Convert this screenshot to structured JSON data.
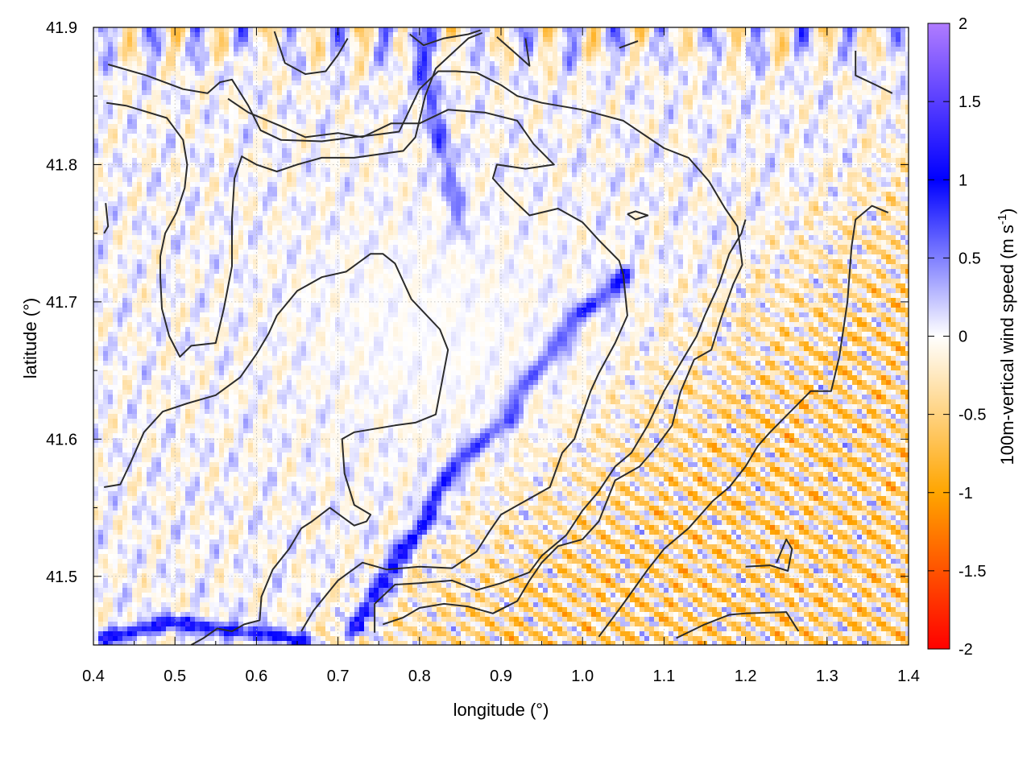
{
  "chart_data": {
    "type": "heatmap",
    "xlabel": "longitude (°)",
    "ylabel": "latitude (°)",
    "colorbar_label_main": "100m-vertical wind speed (m s",
    "colorbar_label_sup": "-1",
    "colorbar_label_end": ")",
    "xlim": [
      0.4,
      1.4
    ],
    "ylim": [
      41.45,
      41.9
    ],
    "x_ticks": [
      "0.4",
      "0.5",
      "0.6",
      "0.7",
      "0.8",
      "0.9",
      "1.0",
      "1.1",
      "1.2",
      "1.3",
      "1.4"
    ],
    "y_ticks": [
      "41.5",
      "41.6",
      "41.7",
      "41.8",
      "41.9"
    ],
    "colorbar_ticks": [
      "2",
      "1.5",
      "1",
      "0.5",
      "0",
      "-0.5",
      "-1",
      "-1.5",
      "-2"
    ],
    "color_range": [
      -2,
      2
    ],
    "grid": true,
    "colors": {
      "positive_strong": "#0000ff",
      "positive_max": "#b07cff",
      "neutral": "#ffffff",
      "negative_mid": "#ffa500",
      "negative_strong": "#ff0000",
      "contour": "#2b2b2b"
    },
    "contours": [
      [
        [
          0.418,
          41.873
        ],
        [
          0.465,
          41.865
        ],
        [
          0.51,
          41.855
        ],
        [
          0.54,
          41.852
        ],
        [
          0.555,
          41.86
        ],
        [
          0.57,
          41.862
        ],
        [
          0.59,
          41.843
        ],
        [
          0.605,
          41.825
        ],
        [
          0.63,
          41.818
        ],
        [
          0.68,
          41.817
        ],
        [
          0.72,
          41.82
        ],
        [
          0.75,
          41.822
        ],
        [
          0.775,
          41.824
        ],
        [
          0.8,
          41.855
        ],
        [
          0.823,
          41.868
        ],
        [
          0.845,
          41.868
        ],
        [
          0.87,
          41.867
        ],
        [
          0.9,
          41.858
        ],
        [
          0.92,
          41.85
        ],
        [
          0.95,
          41.845
        ],
        [
          1.0,
          41.84
        ],
        [
          1.05,
          41.832
        ],
        [
          1.1,
          41.812
        ],
        [
          1.13,
          41.805
        ],
        [
          1.155,
          41.788
        ],
        [
          1.175,
          41.768
        ],
        [
          1.19,
          41.755
        ],
        [
          1.196,
          41.727
        ],
        [
          1.185,
          41.713
        ],
        [
          1.17,
          41.688
        ],
        [
          1.158,
          41.665
        ],
        [
          1.137,
          41.658
        ],
        [
          1.12,
          41.634
        ],
        [
          1.11,
          41.61
        ],
        [
          1.09,
          41.594
        ],
        [
          1.07,
          41.58
        ],
        [
          1.04,
          41.57
        ],
        [
          1.02,
          41.54
        ],
        [
          1.0,
          41.527
        ],
        [
          0.97,
          41.522
        ],
        [
          0.95,
          41.51
        ],
        [
          0.935,
          41.497
        ],
        [
          0.92,
          41.482
        ],
        [
          0.89,
          41.473
        ],
        [
          0.86,
          41.478
        ],
        [
          0.83,
          41.48
        ],
        [
          0.8,
          41.477
        ],
        [
          0.78,
          41.47
        ],
        [
          0.755,
          41.465
        ]
      ],
      [
        [
          0.416,
          41.845
        ],
        [
          0.44,
          41.843
        ],
        [
          0.49,
          41.834
        ],
        [
          0.51,
          41.818
        ],
        [
          0.515,
          41.8
        ],
        [
          0.512,
          41.783
        ],
        [
          0.502,
          41.765
        ],
        [
          0.488,
          41.75
        ],
        [
          0.482,
          41.733
        ],
        [
          0.482,
          41.718
        ],
        [
          0.484,
          41.695
        ],
        [
          0.493,
          41.675
        ],
        [
          0.506,
          41.66
        ],
        [
          0.52,
          41.668
        ],
        [
          0.55,
          41.67
        ],
        [
          0.56,
          41.695
        ],
        [
          0.57,
          41.726
        ],
        [
          0.57,
          41.76
        ],
        [
          0.573,
          41.79
        ],
        [
          0.582,
          41.806
        ],
        [
          0.6,
          41.8
        ],
        [
          0.625,
          41.795
        ],
        [
          0.65,
          41.8
        ],
        [
          0.68,
          41.805
        ],
        [
          0.72,
          41.805
        ],
        [
          0.78,
          41.81
        ],
        [
          0.795,
          41.82
        ],
        [
          0.807,
          41.85
        ],
        [
          0.82,
          41.87
        ],
        [
          0.838,
          41.88
        ],
        [
          0.86,
          41.892
        ],
        [
          0.877,
          41.896
        ]
      ],
      [
        [
          0.413,
          41.565
        ],
        [
          0.433,
          41.567
        ],
        [
          0.445,
          41.582
        ],
        [
          0.462,
          41.605
        ],
        [
          0.485,
          41.62
        ],
        [
          0.515,
          41.626
        ],
        [
          0.55,
          41.632
        ],
        [
          0.58,
          41.645
        ],
        [
          0.6,
          41.662
        ],
        [
          0.615,
          41.677
        ],
        [
          0.625,
          41.69
        ],
        [
          0.65,
          41.708
        ],
        [
          0.68,
          41.718
        ],
        [
          0.71,
          41.722
        ],
        [
          0.74,
          41.735
        ],
        [
          0.755,
          41.735
        ],
        [
          0.77,
          41.728
        ],
        [
          0.79,
          41.702
        ],
        [
          0.825,
          41.68
        ],
        [
          0.835,
          41.665
        ],
        [
          0.828,
          41.643
        ],
        [
          0.82,
          41.618
        ],
        [
          0.795,
          41.612
        ],
        [
          0.77,
          41.61
        ],
        [
          0.72,
          41.605
        ],
        [
          0.705,
          41.6
        ],
        [
          0.708,
          41.575
        ],
        [
          0.72,
          41.552
        ],
        [
          0.74,
          41.545
        ],
        [
          0.735,
          41.54
        ],
        [
          0.72,
          41.537
        ],
        [
          0.69,
          41.55
        ],
        [
          0.668,
          41.54
        ],
        [
          0.655,
          41.535
        ],
        [
          0.64,
          41.52
        ],
        [
          0.62,
          41.505
        ],
        [
          0.606,
          41.485
        ],
        [
          0.604,
          41.468
        ],
        [
          0.585,
          41.465
        ],
        [
          0.57,
          41.46
        ],
        [
          0.552,
          41.462
        ],
        [
          0.535,
          41.455
        ],
        [
          0.52,
          41.45
        ]
      ],
      [
        [
          0.655,
          41.46
        ],
        [
          0.67,
          41.475
        ],
        [
          0.7,
          41.497
        ],
        [
          0.73,
          41.51
        ],
        [
          0.76,
          41.505
        ],
        [
          0.8,
          41.507
        ],
        [
          0.84,
          41.506
        ],
        [
          0.87,
          41.518
        ],
        [
          0.885,
          41.532
        ],
        [
          0.9,
          41.545
        ],
        [
          0.93,
          41.555
        ],
        [
          0.96,
          41.565
        ],
        [
          0.975,
          41.59
        ],
        [
          0.99,
          41.6
        ],
        [
          1.0,
          41.618
        ],
        [
          1.01,
          41.635
        ],
        [
          1.02,
          41.648
        ],
        [
          1.04,
          41.67
        ],
        [
          1.055,
          41.69
        ],
        [
          1.05,
          41.72
        ],
        [
          1.045,
          41.73
        ],
        [
          1.02,
          41.745
        ],
        [
          1.0,
          41.758
        ],
        [
          0.97,
          41.768
        ],
        [
          0.935,
          41.763
        ],
        [
          0.905,
          41.78
        ],
        [
          0.89,
          41.79
        ],
        [
          0.895,
          41.8
        ],
        [
          0.93,
          41.797
        ],
        [
          0.965,
          41.8
        ],
        [
          0.94,
          41.815
        ],
        [
          0.92,
          41.832
        ],
        [
          0.88,
          41.838
        ],
        [
          0.835,
          41.84
        ],
        [
          0.8,
          41.83
        ],
        [
          0.765,
          41.83
        ],
        [
          0.73,
          41.82
        ],
        [
          0.7,
          41.823
        ],
        [
          0.66,
          41.82
        ],
        [
          0.63,
          41.828
        ],
        [
          0.59,
          41.838
        ],
        [
          0.565,
          41.848
        ]
      ],
      [
        [
          0.745,
          41.459
        ],
        [
          0.745,
          41.48
        ],
        [
          0.77,
          41.494
        ],
        [
          0.8,
          41.495
        ],
        [
          0.84,
          41.497
        ],
        [
          0.87,
          41.49
        ],
        [
          0.9,
          41.495
        ],
        [
          0.935,
          41.503
        ],
        [
          0.95,
          41.515
        ],
        [
          0.98,
          41.53
        ],
        [
          1.0,
          41.548
        ],
        [
          1.02,
          41.562
        ],
        [
          1.04,
          41.58
        ],
        [
          1.06,
          41.59
        ],
        [
          1.08,
          41.61
        ],
        [
          1.1,
          41.635
        ],
        [
          1.12,
          41.655
        ],
        [
          1.14,
          41.675
        ],
        [
          1.15,
          41.69
        ],
        [
          1.167,
          41.712
        ],
        [
          1.18,
          41.735
        ],
        [
          1.195,
          41.75
        ],
        [
          1.2,
          41.76
        ]
      ],
      [
        [
          1.02,
          41.456
        ],
        [
          1.05,
          41.48
        ],
        [
          1.08,
          41.505
        ],
        [
          1.1,
          41.52
        ],
        [
          1.13,
          41.535
        ],
        [
          1.16,
          41.555
        ],
        [
          1.18,
          41.565
        ],
        [
          1.2,
          41.58
        ],
        [
          1.215,
          41.595
        ],
        [
          1.23,
          41.605
        ],
        [
          1.255,
          41.62
        ],
        [
          1.28,
          41.635
        ],
        [
          1.305,
          41.635
        ],
        [
          1.315,
          41.66
        ],
        [
          1.325,
          41.7
        ],
        [
          1.33,
          41.74
        ],
        [
          1.335,
          41.76
        ],
        [
          1.355,
          41.77
        ],
        [
          1.375,
          41.765
        ]
      ],
      [
        [
          1.115,
          41.455
        ],
        [
          1.15,
          41.465
        ],
        [
          1.18,
          41.472
        ],
        [
          1.2,
          41.473
        ],
        [
          1.25,
          41.474
        ],
        [
          1.265,
          41.46
        ]
      ],
      [
        [
          1.2,
          41.507
        ],
        [
          1.23,
          41.508
        ],
        [
          1.252,
          41.504
        ],
        [
          1.257,
          41.52
        ],
        [
          1.25,
          41.527
        ],
        [
          1.238,
          41.51
        ]
      ],
      [
        [
          1.055,
          41.764
        ],
        [
          1.065,
          41.766
        ],
        [
          1.08,
          41.763
        ],
        [
          1.065,
          41.76
        ],
        [
          1.055,
          41.764
        ]
      ],
      [
        [
          1.335,
          41.883
        ],
        [
          1.335,
          41.865
        ],
        [
          1.36,
          41.858
        ],
        [
          1.38,
          41.852
        ]
      ],
      [
        [
          0.415,
          41.772
        ],
        [
          0.418,
          41.755
        ],
        [
          0.413,
          41.75
        ]
      ],
      [
        [
          0.622,
          41.897
        ],
        [
          0.635,
          41.874
        ],
        [
          0.66,
          41.866
        ],
        [
          0.685,
          41.868
        ],
        [
          0.7,
          41.88
        ],
        [
          0.712,
          41.892
        ]
      ],
      [
        [
          0.788,
          41.895
        ],
        [
          0.805,
          41.887
        ],
        [
          0.83,
          41.892
        ],
        [
          0.86,
          41.895
        ],
        [
          0.875,
          41.898
        ]
      ],
      [
        [
          0.895,
          41.893
        ],
        [
          0.92,
          41.88
        ],
        [
          0.935,
          41.872
        ],
        [
          0.93,
          41.892
        ]
      ],
      [
        [
          1.045,
          41.885
        ],
        [
          1.068,
          41.89
        ]
      ]
    ]
  }
}
